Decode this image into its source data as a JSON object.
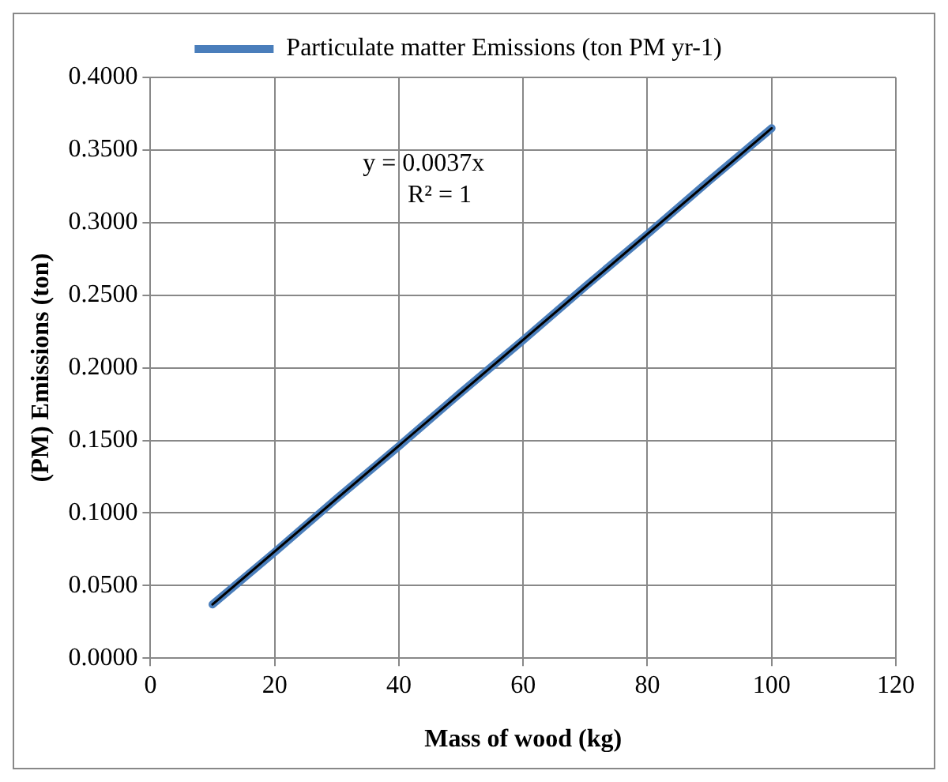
{
  "chart_data": {
    "type": "line",
    "xlabel": "Mass of wood (kg)",
    "ylabel": "(PM) Emissions (ton)",
    "series": [
      {
        "name": "Particulate matter Emissions (ton PM yr-1)",
        "color": "#4a7ebb",
        "x": [
          10,
          20,
          30,
          40,
          50,
          60,
          70,
          80,
          90,
          100
        ],
        "values": [
          0.037,
          0.073,
          0.11,
          0.146,
          0.183,
          0.219,
          0.256,
          0.292,
          0.329,
          0.365
        ]
      },
      {
        "type": "line",
        "color": "#000000",
        "x": [
          10,
          100
        ],
        "values": [
          0.037,
          0.365
        ]
      }
    ],
    "annotations": [
      "y = 0.0037x",
      "R² = 1"
    ],
    "xlim": [
      0,
      120
    ],
    "xticks": [
      0,
      20,
      40,
      60,
      80,
      100,
      120
    ],
    "ylim": [
      0,
      0.4
    ],
    "yticks": [
      {
        "value": 0,
        "label": "0.0000"
      },
      {
        "value": 0.05,
        "label": "0.0500"
      },
      {
        "value": 0.1,
        "label": "0.1000"
      },
      {
        "value": 0.15,
        "label": "0.1500"
      },
      {
        "value": 0.2,
        "label": "0.2000"
      },
      {
        "value": 0.25,
        "label": "0.2500"
      },
      {
        "value": 0.3,
        "label": "0.3000"
      },
      {
        "value": 0.35,
        "label": "0.3500"
      },
      {
        "value": 0.4,
        "label": "0.4000"
      }
    ],
    "grid": true,
    "legend": "top",
    "marker": "none",
    "line_style": "solid"
  }
}
